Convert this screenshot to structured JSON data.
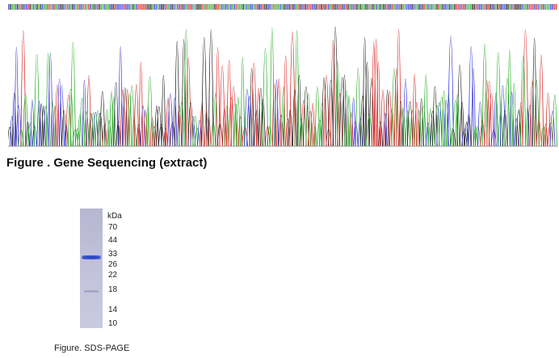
{
  "sequencing": {
    "caption": "Figure . Gene Sequencing (extract)",
    "trace_colors": {
      "A": "#1aa81a",
      "C": "#2a2ad8",
      "G": "#111111",
      "T": "#d81a1a"
    }
  },
  "sds_page": {
    "unit_label": "kDa",
    "markers": [
      "70",
      "44",
      "33",
      "26",
      "22",
      "18",
      "14",
      "10"
    ],
    "caption": "Figure. SDS-PAGE",
    "band_color": "#2a44c4"
  }
}
